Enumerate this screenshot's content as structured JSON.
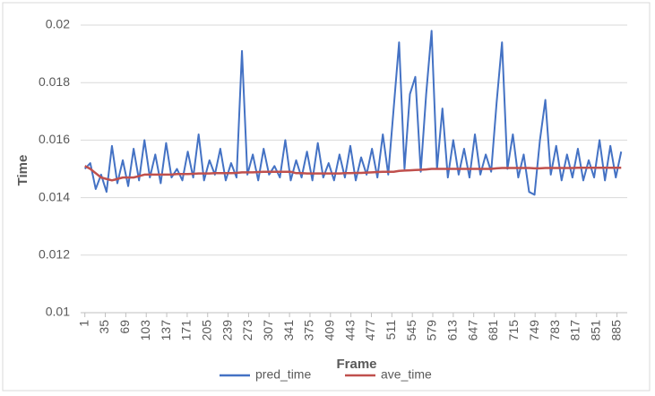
{
  "chart_data": {
    "type": "line",
    "x_label": "Frame",
    "y_label": "Time",
    "x": [
      1,
      10,
      19,
      28,
      37,
      46,
      55,
      64,
      73,
      82,
      91,
      100,
      109,
      118,
      127,
      136,
      145,
      154,
      163,
      172,
      181,
      190,
      199,
      208,
      217,
      226,
      235,
      244,
      253,
      262,
      271,
      280,
      289,
      298,
      307,
      316,
      325,
      334,
      343,
      352,
      361,
      370,
      379,
      388,
      397,
      406,
      415,
      424,
      433,
      442,
      451,
      460,
      469,
      478,
      487,
      496,
      505,
      514,
      523,
      532,
      541,
      550,
      559,
      568,
      577,
      586,
      595,
      604,
      613,
      622,
      631,
      640,
      649,
      658,
      667,
      676,
      685,
      694,
      703,
      712,
      721,
      730,
      739,
      748,
      757,
      766,
      775,
      784,
      793,
      802,
      811,
      820,
      829,
      838,
      847,
      856,
      865,
      874,
      883,
      892
    ],
    "series": [
      {
        "name": "pred_time",
        "color": "#4472c4",
        "values": [
          0.015,
          0.0152,
          0.0143,
          0.0148,
          0.0142,
          0.0158,
          0.0145,
          0.0153,
          0.0144,
          0.0157,
          0.0146,
          0.016,
          0.0147,
          0.0155,
          0.0145,
          0.0159,
          0.0147,
          0.015,
          0.0146,
          0.0156,
          0.0147,
          0.0162,
          0.0146,
          0.0153,
          0.0148,
          0.0157,
          0.0146,
          0.0152,
          0.0147,
          0.0191,
          0.0148,
          0.0155,
          0.0146,
          0.0157,
          0.0148,
          0.0151,
          0.0147,
          0.016,
          0.0146,
          0.0153,
          0.0147,
          0.0156,
          0.0146,
          0.0159,
          0.0147,
          0.0152,
          0.0146,
          0.0155,
          0.0147,
          0.0158,
          0.0146,
          0.0154,
          0.0148,
          0.0157,
          0.0147,
          0.0162,
          0.0148,
          0.0171,
          0.0194,
          0.015,
          0.0176,
          0.0182,
          0.0149,
          0.0176,
          0.0198,
          0.015,
          0.0171,
          0.0147,
          0.016,
          0.0148,
          0.0157,
          0.0147,
          0.0162,
          0.0148,
          0.0155,
          0.0149,
          0.0173,
          0.0194,
          0.015,
          0.0162,
          0.0147,
          0.0155,
          0.0142,
          0.0141,
          0.016,
          0.0174,
          0.0148,
          0.0158,
          0.0146,
          0.0155,
          0.0147,
          0.0157,
          0.0146,
          0.0153,
          0.0147,
          0.016,
          0.0146,
          0.0158,
          0.0147,
          0.0156
        ]
      },
      {
        "name": "ave_time",
        "color": "#c0504d",
        "values": [
          0.0151,
          0.015,
          0.01485,
          0.0147,
          0.01465,
          0.0146,
          0.01465,
          0.0147,
          0.0147,
          0.0147,
          0.01475,
          0.0148,
          0.0148,
          0.0148,
          0.0148,
          0.0148,
          0.0148,
          0.01482,
          0.01482,
          0.01482,
          0.01483,
          0.01484,
          0.01484,
          0.01484,
          0.01485,
          0.01485,
          0.01485,
          0.01485,
          0.01486,
          0.01488,
          0.01488,
          0.01488,
          0.01489,
          0.0149,
          0.0149,
          0.0149,
          0.0149,
          0.0149,
          0.0149,
          0.01485,
          0.01485,
          0.01484,
          0.01484,
          0.01484,
          0.01484,
          0.01484,
          0.01484,
          0.01484,
          0.01485,
          0.01485,
          0.01486,
          0.01486,
          0.01487,
          0.01488,
          0.01489,
          0.0149,
          0.0149,
          0.0149,
          0.01493,
          0.01494,
          0.01495,
          0.01496,
          0.01497,
          0.01498,
          0.015,
          0.015,
          0.015,
          0.015,
          0.015,
          0.015,
          0.015,
          0.015,
          0.015,
          0.015,
          0.015,
          0.015,
          0.01502,
          0.01503,
          0.01503,
          0.01503,
          0.01503,
          0.01503,
          0.01503,
          0.01502,
          0.01502,
          0.01503,
          0.01503,
          0.01503,
          0.01503,
          0.01503,
          0.01503,
          0.01504,
          0.01504,
          0.01504,
          0.01504,
          0.01504,
          0.01504,
          0.01504,
          0.01504,
          0.01504
        ]
      }
    ],
    "xlim": [
      -6,
      902
    ],
    "xticks": [
      1,
      35,
      69,
      103,
      137,
      171,
      205,
      239,
      273,
      307,
      341,
      375,
      409,
      443,
      477,
      511,
      545,
      579,
      613,
      647,
      681,
      715,
      749,
      783,
      817,
      851,
      885
    ],
    "ylim": [
      0.01,
      0.02
    ],
    "yticks": [
      0.01,
      0.012,
      0.014,
      0.016,
      0.018,
      0.02
    ],
    "grid": true,
    "legend": "bottom"
  }
}
